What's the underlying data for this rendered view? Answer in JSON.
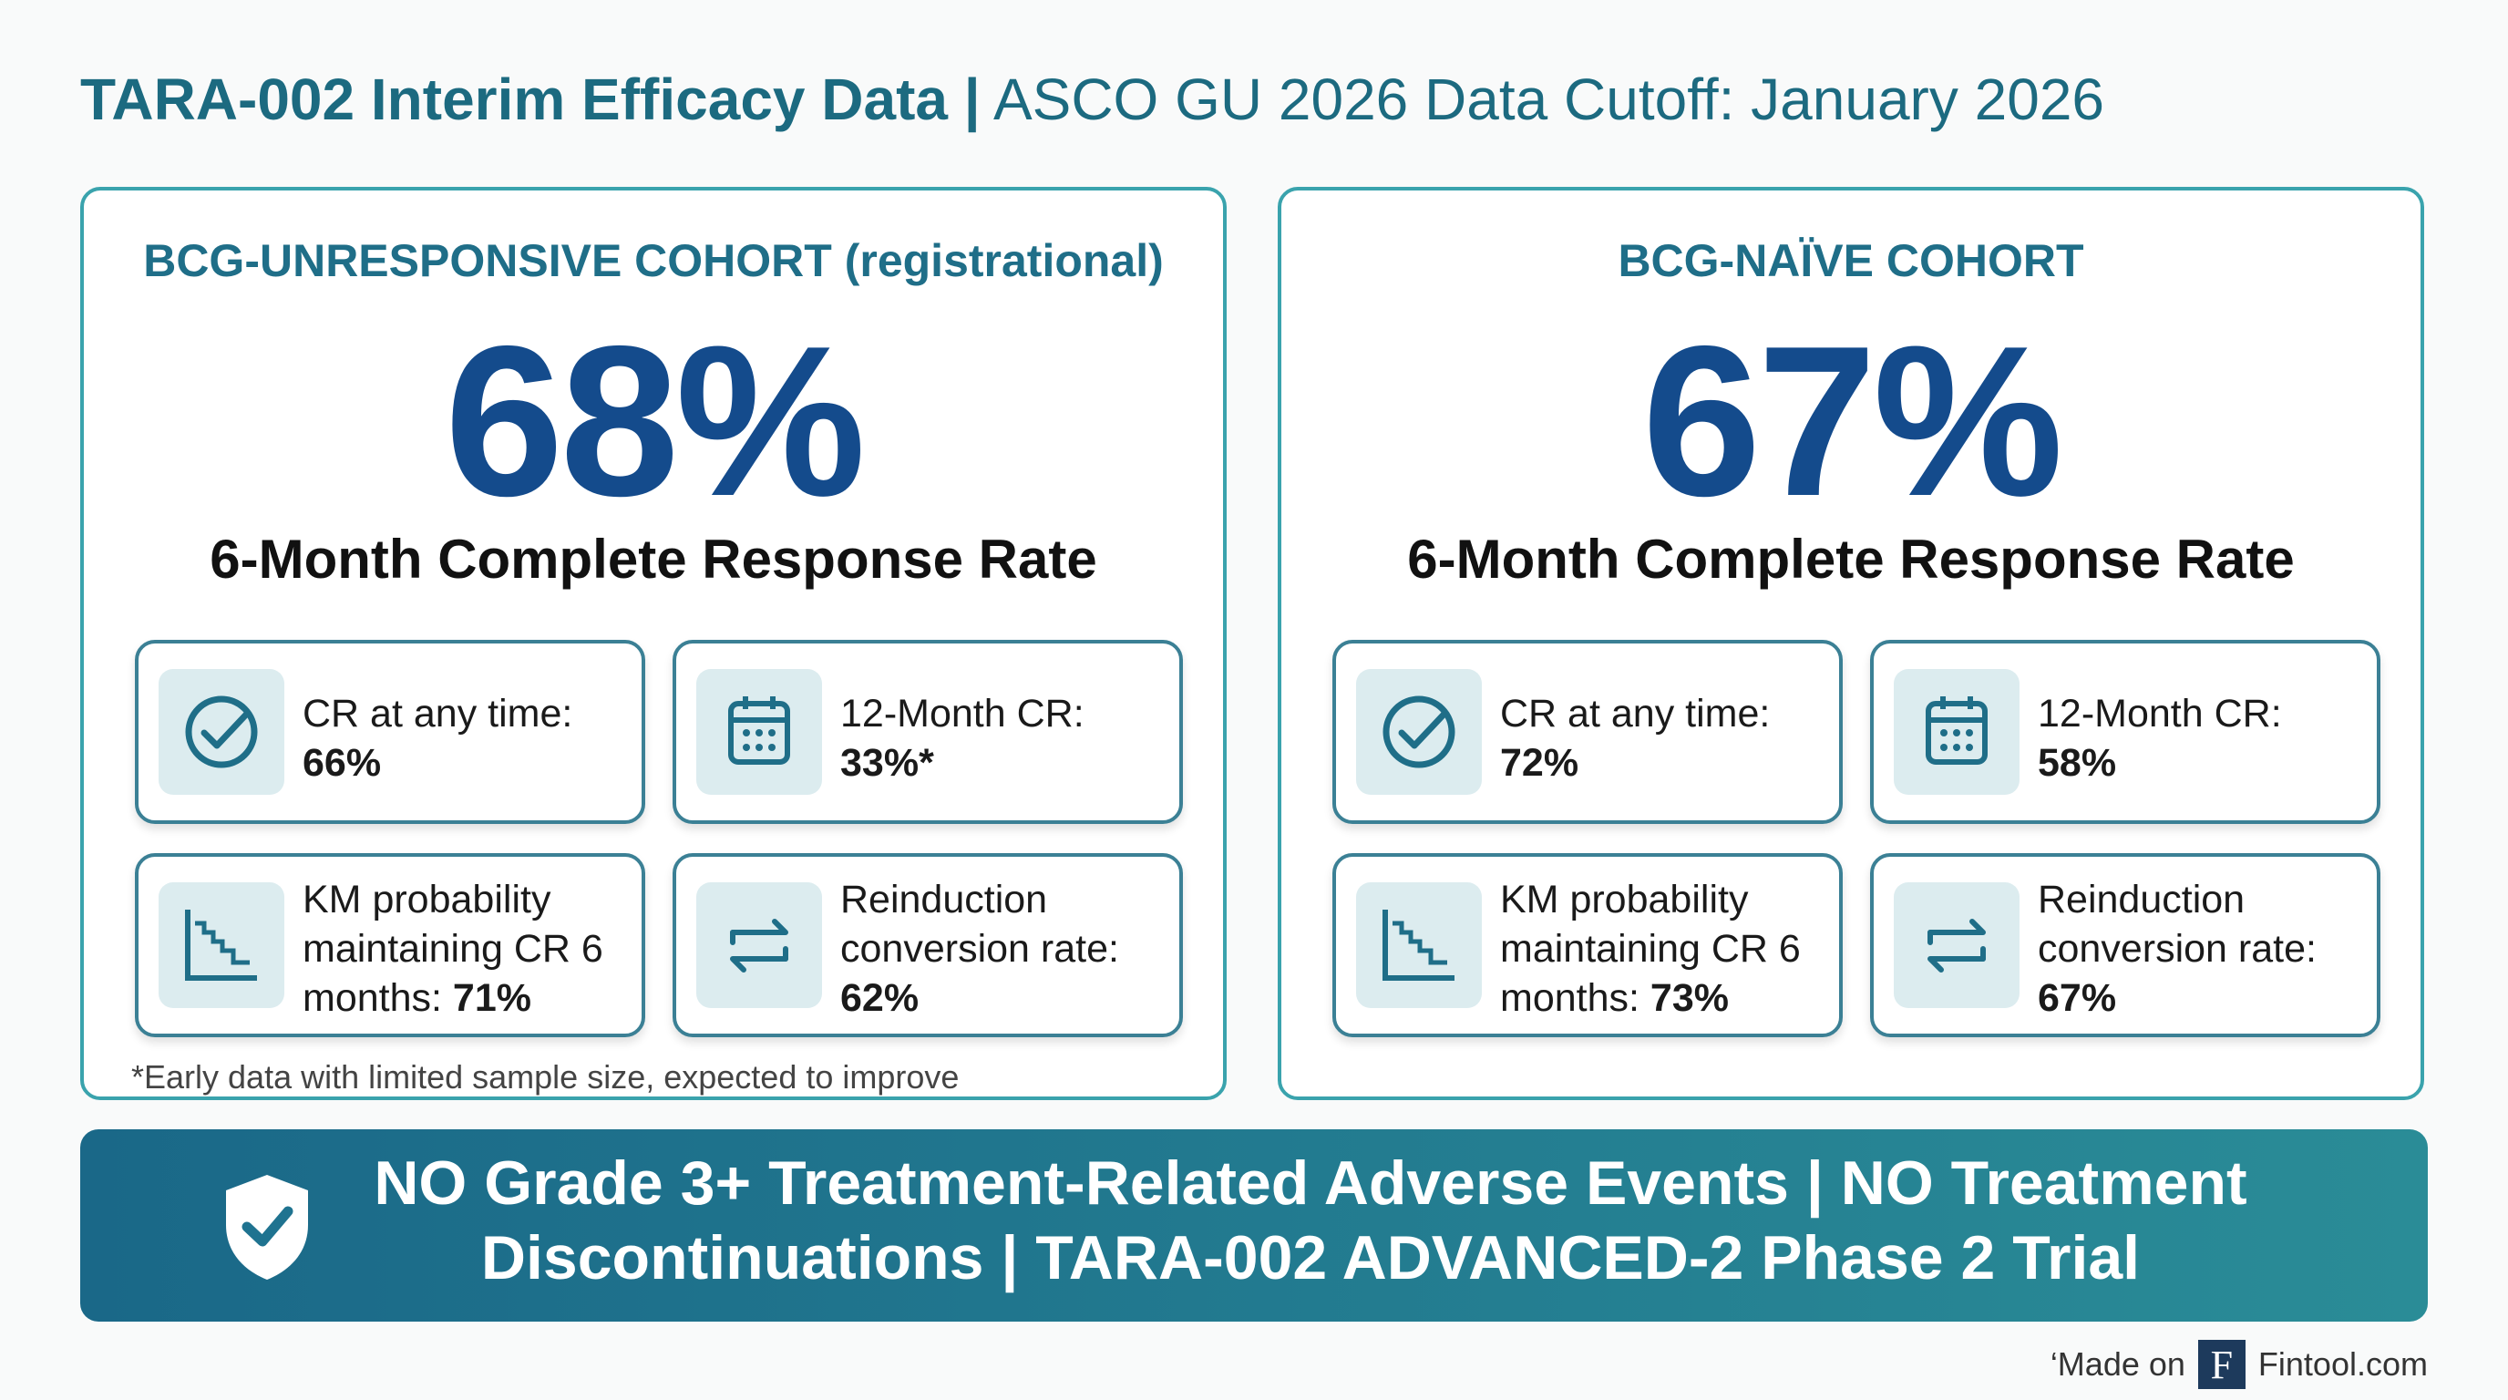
{
  "header": {
    "title_bold": "TARA-002 Interim Efficacy Data",
    "separator": "|",
    "title_regular": "ASCO GU 2026 Data Cutoff: January 2026"
  },
  "cohorts": [
    {
      "heading": "BCG-UNRESPONSIVE COHORT (registrational)",
      "value": "68%",
      "label": "6-Month Complete Response Rate",
      "cards": [
        {
          "label": "CR at any time:",
          "value": "66%"
        },
        {
          "label": "12-Month CR:",
          "value": "33%*"
        },
        {
          "label": "KM probability maintaining CR 6 months:",
          "value": "71%"
        },
        {
          "label": "Reinduction conversion rate:",
          "value": "62%"
        }
      ],
      "footnote": "*Early data with limited sample size, expected to improve"
    },
    {
      "heading": "BCG-NAÏVE COHORT",
      "value": "67%",
      "label": "6-Month Complete Response Rate",
      "cards": [
        {
          "label": "CR at any time:",
          "value": "72%"
        },
        {
          "label": "12-Month CR:",
          "value": "58%"
        },
        {
          "label": "KM probability maintaining CR 6 months:",
          "value": "73%"
        },
        {
          "label": "Reinduction conversion rate:",
          "value": "67%"
        }
      ]
    }
  ],
  "banner": {
    "text": "NO Grade 3+ Treatment-Related Adverse Events | NO Treatment Discontinuations | TARA-002 ADVANCED-2 Phase 2 Trial"
  },
  "footer": {
    "made_on": "‘Made on",
    "logo": "F",
    "brand": "Fintool.com"
  }
}
